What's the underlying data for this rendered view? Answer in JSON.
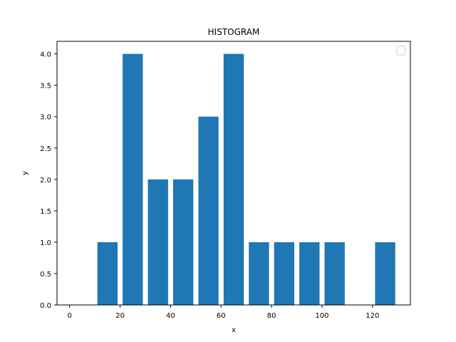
{
  "chart_data": {
    "type": "bar",
    "title": "HISTOGRAM",
    "xlabel": "x",
    "ylabel": "y",
    "bar_color": "#1f77b4",
    "bar_width": 8,
    "xlim": [
      -5,
      135
    ],
    "ylim": [
      0,
      4.2
    ],
    "x_ticks": [
      0,
      20,
      40,
      60,
      80,
      100,
      120
    ],
    "y_ticks": [
      0.0,
      0.5,
      1.0,
      1.5,
      2.0,
      2.5,
      3.0,
      3.5,
      4.0
    ],
    "x_tick_labels": [
      "0",
      "20",
      "40",
      "60",
      "80",
      "100",
      "120"
    ],
    "y_tick_labels": [
      "0.0",
      "0.5",
      "1.0",
      "1.5",
      "2.0",
      "2.5",
      "3.0",
      "3.5",
      "4.0"
    ],
    "x": [
      5,
      15,
      25,
      35,
      45,
      55,
      65,
      75,
      85,
      95,
      105,
      115,
      125
    ],
    "values": [
      0,
      1,
      4,
      2,
      2,
      3,
      4,
      1,
      1,
      1,
      1,
      0,
      1
    ],
    "legend": {
      "placement": "top-right",
      "entries": []
    },
    "grid": false
  }
}
